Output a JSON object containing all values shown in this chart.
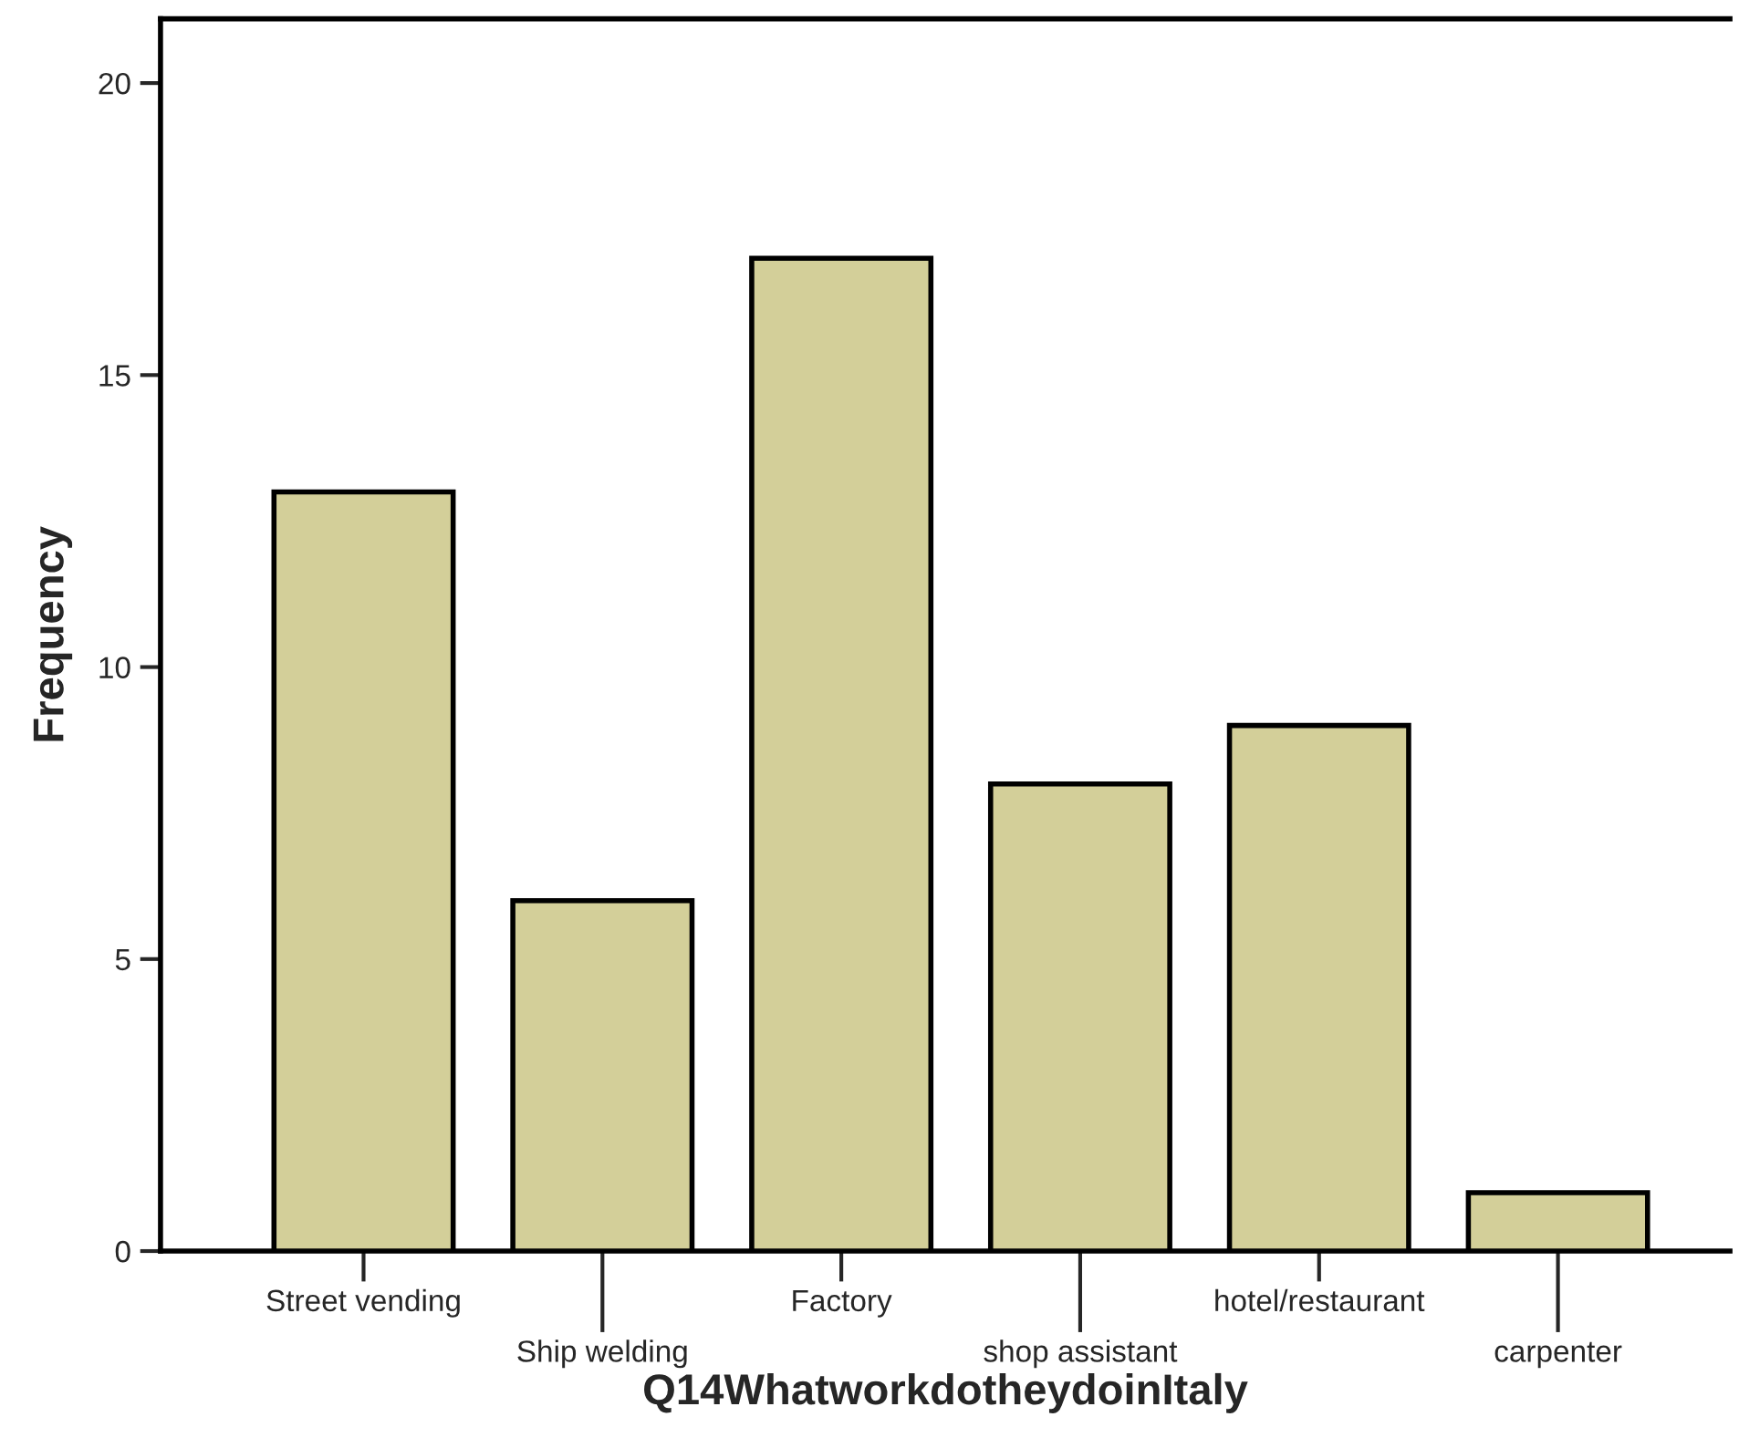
{
  "chart_data": {
    "type": "bar",
    "xlabel": "Q14WhatworkdotheydoinItaly",
    "ylabel": "Frequency",
    "categories": [
      "Street vending",
      "Ship welding",
      "Factory",
      "shop assistant",
      "hotel/restaurant",
      "carpenter"
    ],
    "values": [
      13,
      6,
      17,
      8,
      9,
      1
    ],
    "color": "#d3cf99",
    "ylim": [
      0,
      21.1
    ],
    "yticks": [
      0,
      5,
      10,
      15,
      20
    ],
    "grid": false,
    "legend": false
  }
}
